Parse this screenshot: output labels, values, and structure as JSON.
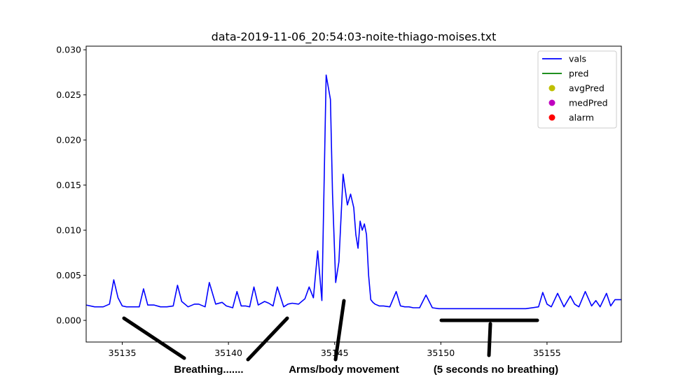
{
  "chart_data": {
    "type": "line",
    "title": "data-2019-11-06_20:54:03-noite-thiago-moises.txt",
    "xlabel": "",
    "ylabel": "",
    "xlim": [
      35133.3,
      35158.5
    ],
    "ylim": [
      -0.0024,
      0.0304
    ],
    "x_ticks": [
      35135,
      35140,
      35145,
      35150,
      35155
    ],
    "y_ticks": [
      0.0,
      0.005,
      0.01,
      0.015,
      0.02,
      0.025,
      0.03
    ],
    "y_tick_labels": [
      "0.000",
      "0.005",
      "0.010",
      "0.015",
      "0.020",
      "0.025",
      "0.030"
    ],
    "grid": false,
    "legend_position": "top-right",
    "legend": [
      {
        "label": "vals",
        "kind": "line",
        "color": "#0000ff"
      },
      {
        "label": "pred",
        "kind": "line",
        "color": "#008000"
      },
      {
        "label": "avgPred",
        "kind": "marker",
        "color": "#bfbf00"
      },
      {
        "label": "medPred",
        "kind": "marker",
        "color": "#bf00bf"
      },
      {
        "label": "alarm",
        "kind": "marker",
        "color": "#ff0000"
      }
    ],
    "series": [
      {
        "name": "vals",
        "color": "#0000ff",
        "x": [
          35133.3,
          35133.7,
          35134.1,
          35134.4,
          35134.6,
          35134.8,
          35135.0,
          35135.2,
          35135.5,
          35135.8,
          35136.0,
          35136.2,
          35136.5,
          35136.8,
          35137.1,
          35137.4,
          35137.6,
          35137.8,
          35138.1,
          35138.4,
          35138.6,
          35138.9,
          35139.1,
          35139.4,
          35139.7,
          35139.9,
          35140.2,
          35140.4,
          35140.6,
          35140.8,
          35141.0,
          35141.2,
          35141.4,
          35141.7,
          35141.9,
          35142.1,
          35142.3,
          35142.6,
          35142.8,
          35143.0,
          35143.3,
          35143.6,
          35143.8,
          35144.0,
          35144.2,
          35144.4,
          35144.6,
          35144.8,
          35144.9,
          35145.05,
          35145.2,
          35145.4,
          35145.6,
          35145.75,
          35145.9,
          35146.0,
          35146.1,
          35146.2,
          35146.3,
          35146.4,
          35146.5,
          35146.6,
          35146.7,
          35146.8,
          35146.9,
          35147.1,
          35147.3,
          35147.6,
          35147.9,
          35148.1,
          35148.3,
          35148.5,
          35148.7,
          35149.0,
          35149.3,
          35149.6,
          35149.9,
          35150.1,
          35150.4,
          35151.0,
          35152.0,
          35153.0,
          35154.0,
          35154.6,
          35154.8,
          35155.0,
          35155.2,
          35155.5,
          35155.8,
          35156.1,
          35156.3,
          35156.5,
          35156.8,
          35157.1,
          35157.3,
          35157.5,
          35157.8,
          35158.0,
          35158.2,
          35158.5
        ],
        "values": [
          0.0017,
          0.0015,
          0.0015,
          0.0018,
          0.0045,
          0.0025,
          0.0016,
          0.0015,
          0.0015,
          0.0015,
          0.0035,
          0.0017,
          0.0017,
          0.0015,
          0.0015,
          0.0016,
          0.0039,
          0.0021,
          0.0015,
          0.0018,
          0.0018,
          0.0015,
          0.0042,
          0.0018,
          0.002,
          0.0016,
          0.0014,
          0.0032,
          0.0016,
          0.0016,
          0.0015,
          0.0037,
          0.0017,
          0.0021,
          0.0019,
          0.0016,
          0.0037,
          0.0015,
          0.0018,
          0.0019,
          0.0018,
          0.0024,
          0.0037,
          0.0025,
          0.0077,
          0.0022,
          0.0272,
          0.0245,
          0.014,
          0.0042,
          0.0065,
          0.0162,
          0.0128,
          0.014,
          0.0125,
          0.0095,
          0.008,
          0.011,
          0.01,
          0.0107,
          0.0095,
          0.005,
          0.0023,
          0.002,
          0.0018,
          0.0016,
          0.0016,
          0.0015,
          0.0032,
          0.0016,
          0.0015,
          0.0015,
          0.0014,
          0.0014,
          0.0028,
          0.0014,
          0.0013,
          0.0013,
          0.0013,
          0.0013,
          0.0013,
          0.0013,
          0.0013,
          0.0015,
          0.0031,
          0.0018,
          0.0015,
          0.003,
          0.0015,
          0.0027,
          0.0018,
          0.0015,
          0.0032,
          0.0016,
          0.0022,
          0.0015,
          0.003,
          0.0016,
          0.0023,
          0.0023
        ]
      },
      {
        "name": "pred",
        "color": "#008000",
        "x": [],
        "values": []
      },
      {
        "name": "avgPred",
        "color": "#bfbf00",
        "x": [],
        "values": []
      },
      {
        "name": "medPred",
        "color": "#bf00bf",
        "x": [],
        "values": []
      },
      {
        "name": "alarm",
        "color": "#ff0000",
        "x": [],
        "values": []
      }
    ],
    "annotations": [
      {
        "text": "Breathing.......",
        "target_x": 35137.0
      },
      {
        "text": "Arms/body movement",
        "target_x": 35145.0
      },
      {
        "text": "(5 seconds no breathing)",
        "target_x": 35152.5
      }
    ]
  }
}
